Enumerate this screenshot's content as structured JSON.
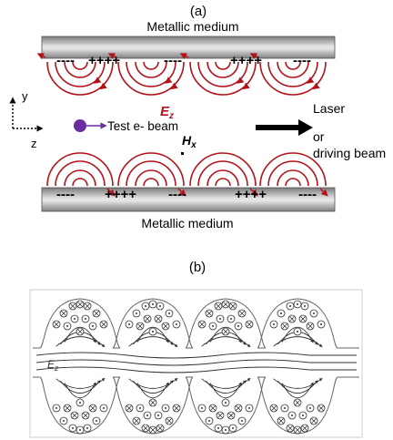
{
  "panel_a": {
    "label": "(a)",
    "top_medium": "Metallic medium",
    "bottom_medium": "Metallic medium",
    "top_charges": [
      "----",
      "++++",
      "----",
      "++++",
      "----"
    ],
    "bottom_charges": [
      "----",
      "++++",
      "----",
      "++++",
      "----"
    ],
    "axis_y": "y",
    "axis_z": "z",
    "beam_label": "Test e- beam",
    "field_e": "E",
    "field_e_sub": "z",
    "field_h": "H",
    "field_h_sub": "x",
    "laser_line1": "Laser",
    "laser_line2": "or",
    "laser_line3": "driving beam",
    "colors": {
      "field": "#b3121b",
      "beam": "#6a2d9e"
    }
  },
  "panel_b": {
    "label": "(b)",
    "field_e": "E",
    "field_e_sub": "z"
  }
}
